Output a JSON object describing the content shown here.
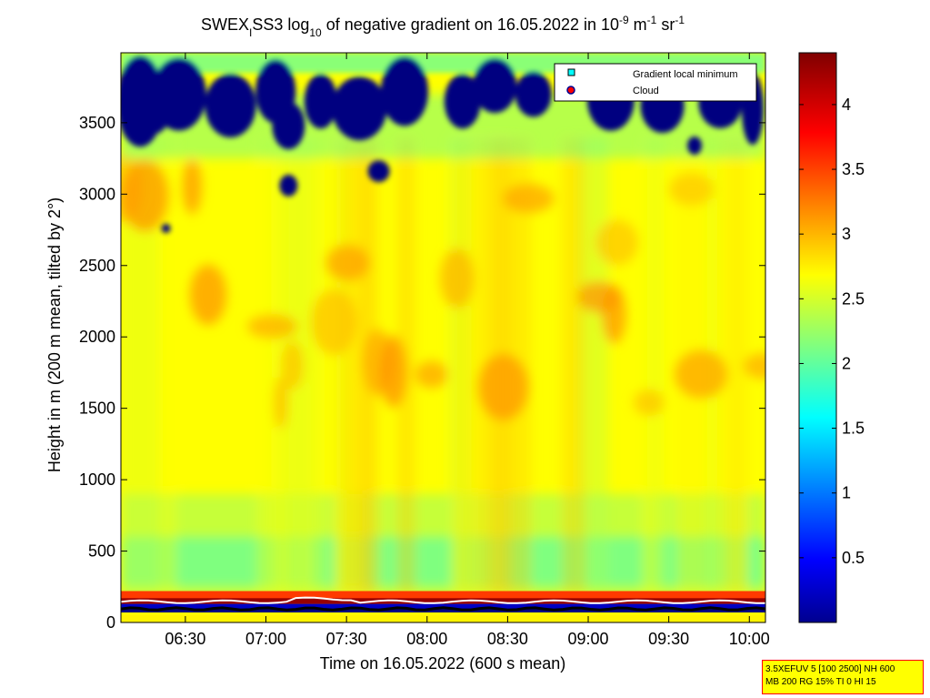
{
  "chart_data": {
    "type": "heatmap",
    "title": {
      "prefix": "SWEX",
      "prefix_sub": "I",
      "mid": "SS3 log",
      "mid_sub": "10",
      "mid2": " of negative gradient on 16.05.2022 in 10",
      "exp1": "-9",
      "unit1": " m",
      "exp2": "-1",
      "unit2": " sr",
      "exp3": "-1"
    },
    "xlabel": "Time on 16.05.2022 (600 s mean)",
    "ylabel": "Height in m (200 m mean, tilted by 2°)",
    "x_ticks": [
      "06:30",
      "07:00",
      "07:30",
      "08:00",
      "08:30",
      "09:00",
      "09:30",
      "10:00"
    ],
    "x_tick_hours": [
      6.5,
      7.0,
      7.5,
      8.0,
      8.5,
      9.0,
      9.5,
      10.0
    ],
    "xlim_hours": [
      6.1,
      10.1
    ],
    "y_ticks": [
      "0",
      "500",
      "1000",
      "1500",
      "2000",
      "2500",
      "3000",
      "3500"
    ],
    "y_tick_values": [
      0,
      500,
      1000,
      1500,
      2000,
      2500,
      3000,
      3500
    ],
    "ylim": [
      0,
      3990
    ],
    "colorbar": {
      "ticks": [
        "0.5",
        "1",
        "1.5",
        "2",
        "2.5",
        "3",
        "3.5",
        "4"
      ],
      "tick_values": [
        0.5,
        1.0,
        1.5,
        2.0,
        2.5,
        3.0,
        3.5,
        4.0
      ],
      "range": [
        0,
        4.4
      ],
      "colormap": "jet"
    },
    "legend": {
      "placement": "top-right",
      "entries": [
        {
          "name": "Gradient local minimum",
          "marker": "square",
          "color": "#00ffff"
        },
        {
          "name": "Cloud",
          "marker": "circle",
          "color": "#ff0000"
        }
      ]
    },
    "background_level": 2.75,
    "surface_band": {
      "height_m": 220,
      "level": 4.3
    },
    "near_surface_level": 1.7,
    "upper_clear_region": {
      "from_height_m": 3400,
      "level": 0.0
    }
  },
  "footer": {
    "line1": "3.5XEFUV 5 [100 2500] NH 600",
    "line2": "MB 200 RG 15% TI 0 HI 15"
  }
}
